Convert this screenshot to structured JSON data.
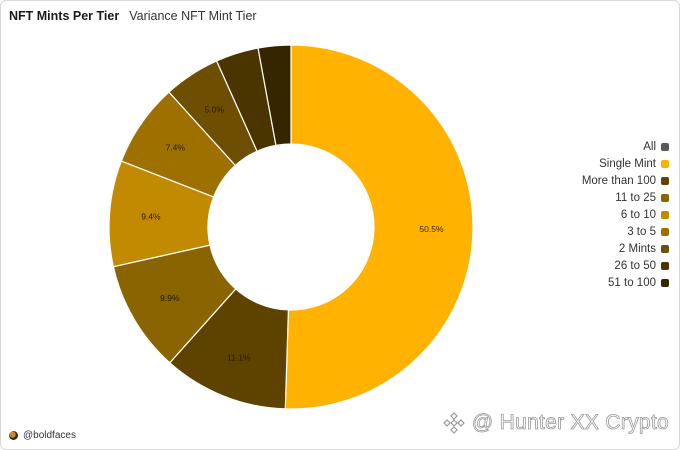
{
  "header": {
    "title": "NFT Mints Per Tier",
    "subtitle": "Variance NFT Mint Tier"
  },
  "legend": {
    "items": [
      {
        "label": "All",
        "color": "#595959"
      },
      {
        "label": "Single Mint",
        "color": "#ffb300"
      },
      {
        "label": "More than 100",
        "color": "#5e4300"
      },
      {
        "label": "11 to 25",
        "color": "#8a6400"
      },
      {
        "label": "6 to 10",
        "color": "#c28a00"
      },
      {
        "label": "3 to 5",
        "color": "#9e7000"
      },
      {
        "label": "2 Mints",
        "color": "#6e4e00"
      },
      {
        "label": "26 to 50",
        "color": "#4a3400"
      },
      {
        "label": "51 to 100",
        "color": "#362600"
      }
    ]
  },
  "chart_data": {
    "type": "pie",
    "donut": true,
    "title": "NFT Mints Per Tier",
    "subtitle": "Variance NFT Mint Tier",
    "legend_position": "right",
    "slices": [
      {
        "label": "Single Mint",
        "value": 50.5,
        "data_label": "50.5%",
        "color": "#ffb300"
      },
      {
        "label": "More than 100",
        "value": 11.1,
        "data_label": "11.1%",
        "color": "#5e4300"
      },
      {
        "label": "11 to 25",
        "value": 9.9,
        "data_label": "9.9%",
        "color": "#8a6400"
      },
      {
        "label": "6 to 10",
        "value": 9.4,
        "data_label": "9.4%",
        "color": "#c28a00"
      },
      {
        "label": "3 to 5",
        "value": 7.4,
        "data_label": "7.4%",
        "color": "#9e7000"
      },
      {
        "label": "2 Mints",
        "value": 5.0,
        "data_label": "5.0%",
        "color": "#6e4e00"
      },
      {
        "label": "26 to 50",
        "value": 3.8,
        "data_label": "",
        "color": "#4a3400"
      },
      {
        "label": "51 to 100",
        "value": 2.9,
        "data_label": "",
        "color": "#362600"
      }
    ]
  },
  "footer": {
    "handle": "@boldfaces"
  },
  "watermark": {
    "text": "@ Hunter XX Crypto"
  }
}
